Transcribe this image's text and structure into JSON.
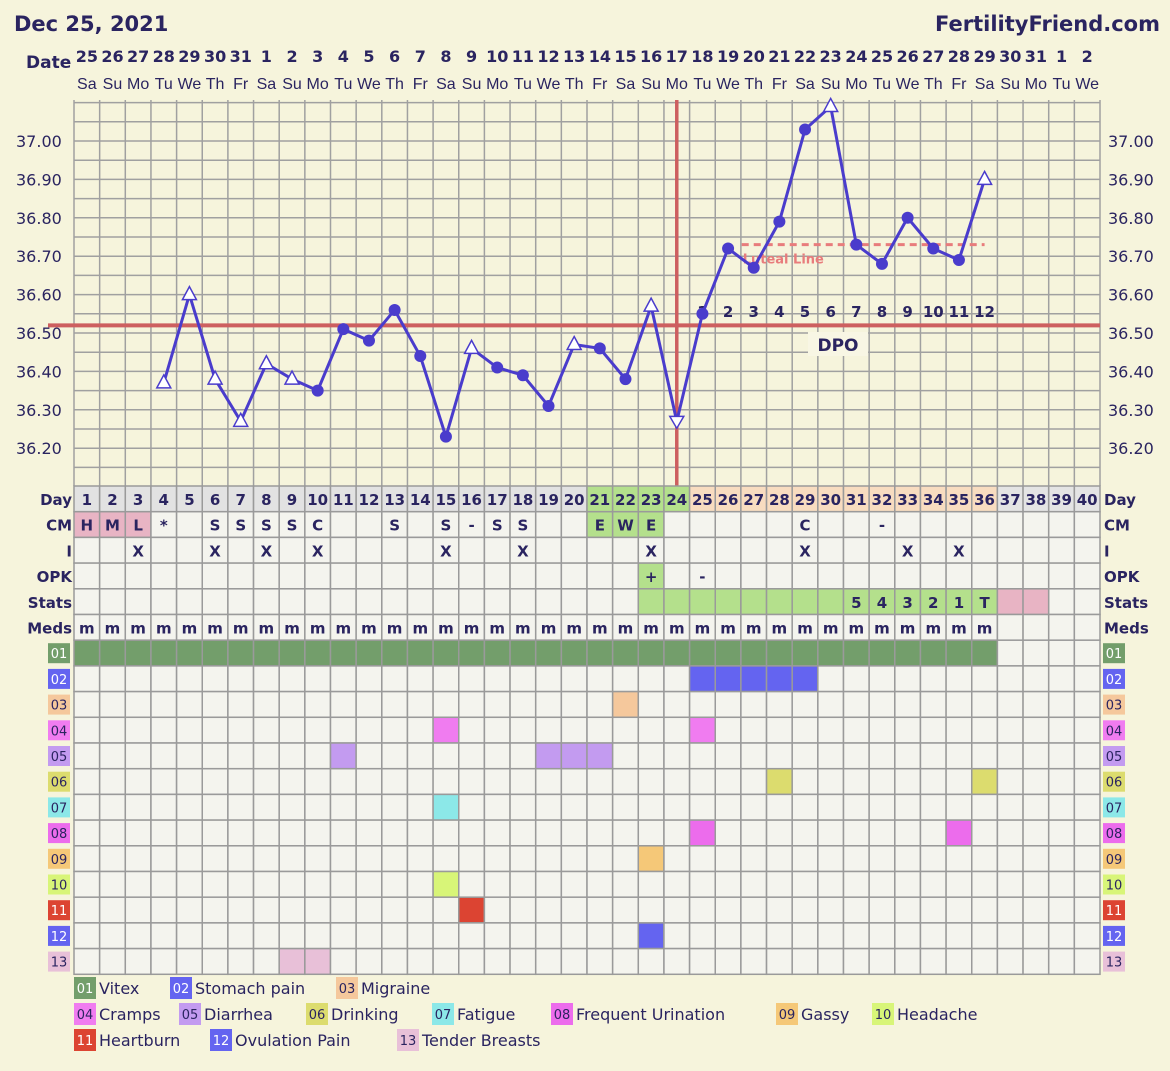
{
  "header": {
    "date": "Dec 25, 2021",
    "site": "FertilityFriend.com",
    "date_label": "Date"
  },
  "dates": [
    {
      "d": "25",
      "w": "Sa"
    },
    {
      "d": "26",
      "w": "Su"
    },
    {
      "d": "27",
      "w": "Mo"
    },
    {
      "d": "28",
      "w": "Tu"
    },
    {
      "d": "29",
      "w": "We"
    },
    {
      "d": "30",
      "w": "Th"
    },
    {
      "d": "31",
      "w": "Fr"
    },
    {
      "d": "1",
      "w": "Sa"
    },
    {
      "d": "2",
      "w": "Su"
    },
    {
      "d": "3",
      "w": "Mo"
    },
    {
      "d": "4",
      "w": "Tu"
    },
    {
      "d": "5",
      "w": "We"
    },
    {
      "d": "6",
      "w": "Th"
    },
    {
      "d": "7",
      "w": "Fr"
    },
    {
      "d": "8",
      "w": "Sa"
    },
    {
      "d": "9",
      "w": "Su"
    },
    {
      "d": "10",
      "w": "Mo"
    },
    {
      "d": "11",
      "w": "Tu"
    },
    {
      "d": "12",
      "w": "We"
    },
    {
      "d": "13",
      "w": "Th"
    },
    {
      "d": "14",
      "w": "Fr"
    },
    {
      "d": "15",
      "w": "Sa"
    },
    {
      "d": "16",
      "w": "Su"
    },
    {
      "d": "17",
      "w": "Mo"
    },
    {
      "d": "18",
      "w": "Tu"
    },
    {
      "d": "19",
      "w": "We"
    },
    {
      "d": "20",
      "w": "Th"
    },
    {
      "d": "21",
      "w": "Fr"
    },
    {
      "d": "22",
      "w": "Sa"
    },
    {
      "d": "23",
      "w": "Su"
    },
    {
      "d": "24",
      "w": "Mo"
    },
    {
      "d": "25",
      "w": "Tu"
    },
    {
      "d": "26",
      "w": "We"
    },
    {
      "d": "27",
      "w": "Th"
    },
    {
      "d": "28",
      "w": "Fr"
    },
    {
      "d": "29",
      "w": "Sa"
    },
    {
      "d": "30",
      "w": "Su"
    },
    {
      "d": "31",
      "w": "Mo"
    },
    {
      "d": "1",
      "w": "Tu"
    },
    {
      "d": "2",
      "w": "We"
    }
  ],
  "chart_data": {
    "type": "line",
    "ylim": [
      36.1,
      37.1
    ],
    "y_ticks": [
      "37.00",
      "36.90",
      "36.80",
      "36.70",
      "36.60",
      "36.50",
      "36.40",
      "36.30",
      "36.20"
    ],
    "x": [
      1,
      2,
      3,
      4,
      5,
      6,
      7,
      8,
      9,
      10,
      11,
      12,
      13,
      14,
      15,
      16,
      17,
      18,
      19,
      20,
      21,
      22,
      23,
      24,
      25,
      26,
      27,
      28,
      29,
      30,
      31,
      32,
      33,
      34,
      35,
      36,
      37,
      38,
      39,
      40
    ],
    "temps": [
      null,
      null,
      null,
      36.37,
      36.6,
      36.38,
      36.27,
      36.42,
      36.38,
      36.35,
      36.51,
      36.48,
      36.56,
      36.44,
      36.23,
      36.46,
      36.41,
      36.39,
      36.31,
      36.47,
      36.46,
      36.38,
      36.57,
      36.27,
      36.55,
      36.72,
      36.67,
      36.79,
      37.03,
      37.09,
      36.73,
      36.68,
      36.8,
      36.72,
      36.69,
      36.9,
      null,
      null,
      null,
      null
    ],
    "markers": [
      null,
      null,
      null,
      "open",
      "open",
      "open",
      "open",
      "open",
      "open",
      "filled",
      "filled",
      "filled",
      "filled",
      "filled",
      "filled",
      "open",
      "filled",
      "filled",
      "filled",
      "open",
      "filled",
      "filled",
      "open",
      "open-down",
      "filled",
      "filled",
      "filled",
      "filled",
      "filled",
      "open",
      "filled",
      "filled",
      "filled",
      "filled",
      "filled",
      "open",
      null,
      null,
      null,
      null
    ],
    "coverline": 36.52,
    "ovulation_day": 24,
    "luteal_line": {
      "value": 36.73,
      "from_day": 27,
      "to_day": 36,
      "label": "Luteal Line"
    },
    "dpo_days": [
      25,
      26,
      27,
      28,
      29,
      30,
      31,
      32,
      33,
      34,
      35,
      36
    ],
    "dpo_labels": [
      "1",
      "2",
      "3",
      "4",
      "5",
      "6",
      "7",
      "8",
      "9",
      "10",
      "11",
      "12"
    ],
    "dpo_label": "DPO",
    "grid": true
  },
  "rows": {
    "labels": {
      "day": "Day",
      "cm": "CM",
      "i": "I",
      "opk": "OPK",
      "stats": "Stats",
      "meds": "Meds"
    },
    "day_numbers": [
      "1",
      "2",
      "3",
      "4",
      "5",
      "6",
      "7",
      "8",
      "9",
      "10",
      "11",
      "12",
      "13",
      "14",
      "15",
      "16",
      "17",
      "18",
      "19",
      "20",
      "21",
      "22",
      "23",
      "24",
      "25",
      "26",
      "27",
      "28",
      "29",
      "30",
      "31",
      "32",
      "33",
      "34",
      "35",
      "36",
      "37",
      "38",
      "39",
      "40"
    ],
    "cm": [
      "H",
      "M",
      "L",
      "*",
      "",
      "S",
      "S",
      "S",
      "S",
      "C",
      "",
      "",
      "S",
      "",
      "S",
      "-",
      "S",
      "S",
      "",
      "",
      "E",
      "W",
      "E",
      "",
      "",
      "",
      "",
      "",
      "C",
      "",
      "",
      "-",
      "",
      "",
      "",
      "",
      "",
      "",
      "",
      ""
    ],
    "i": [
      "",
      "",
      "X",
      "",
      "",
      "X",
      "",
      "X",
      "",
      "X",
      "",
      "",
      "",
      "",
      "X",
      "",
      "",
      "X",
      "",
      "",
      "",
      "",
      "X",
      "",
      "",
      "",
      "",
      "",
      "X",
      "",
      "",
      "",
      "X",
      "",
      "X",
      "",
      "",
      "",
      "",
      ""
    ],
    "opk": [
      "",
      "",
      "",
      "",
      "",
      "",
      "",
      "",
      "",
      "",
      "",
      "",
      "",
      "",
      "",
      "",
      "",
      "",
      "",
      "",
      "",
      "",
      "+",
      "",
      "-",
      "",
      "",
      "",
      "",
      "",
      "",
      "",
      "",
      "",
      "",
      "",
      "",
      "",
      "",
      ""
    ],
    "stats": [
      "",
      "",
      "",
      "",
      "",
      "",
      "",
      "",
      "",
      "",
      "",
      "",
      "",
      "",
      "",
      "",
      "",
      "",
      "",
      "",
      "",
      "",
      "",
      "",
      "",
      "",
      "",
      "",
      "",
      "",
      "5",
      "4",
      "3",
      "2",
      "1",
      "T",
      "",
      "",
      "",
      ""
    ],
    "meds": [
      "m",
      "m",
      "m",
      "m",
      "m",
      "m",
      "m",
      "m",
      "m",
      "m",
      "m",
      "m",
      "m",
      "m",
      "m",
      "m",
      "m",
      "m",
      "m",
      "m",
      "m",
      "m",
      "m",
      "m",
      "m",
      "m",
      "m",
      "m",
      "m",
      "m",
      "m",
      "m",
      "m",
      "m",
      "m",
      "m",
      "",
      "",
      "",
      ""
    ]
  },
  "symptoms": [
    {
      "code": "01",
      "name": "Vitex",
      "color": "#739e6b",
      "text": "#ffffff",
      "days": [
        1,
        2,
        3,
        4,
        5,
        6,
        7,
        8,
        9,
        10,
        11,
        12,
        13,
        14,
        15,
        16,
        17,
        18,
        19,
        20,
        21,
        22,
        23,
        24,
        25,
        26,
        27,
        28,
        29,
        30,
        31,
        32,
        33,
        34,
        35,
        36
      ]
    },
    {
      "code": "02",
      "name": "Stomach pain",
      "color": "#6464f0",
      "text": "#ffffff",
      "days": [
        25,
        26,
        27,
        28,
        29
      ]
    },
    {
      "code": "03",
      "name": "Migraine",
      "color": "#f5c89c",
      "text": "#2a2460",
      "days": [
        22
      ]
    },
    {
      "code": "04",
      "name": "Cramps",
      "color": "#f07cf0",
      "text": "#2a2460",
      "days": [
        15,
        25
      ]
    },
    {
      "code": "05",
      "name": "Diarrhea",
      "color": "#c39bf0",
      "text": "#2a2460",
      "days": [
        11,
        19,
        20,
        21
      ]
    },
    {
      "code": "06",
      "name": "Drinking",
      "color": "#dcdc6e",
      "text": "#2a2460",
      "days": [
        28,
        36
      ]
    },
    {
      "code": "07",
      "name": "Fatigue",
      "color": "#8ce8e8",
      "text": "#2a2460",
      "days": [
        15
      ]
    },
    {
      "code": "08",
      "name": "Frequent Urination",
      "color": "#ec6cec",
      "text": "#2a2460",
      "days": [
        25,
        35
      ]
    },
    {
      "code": "09",
      "name": "Gassy",
      "color": "#f5c878",
      "text": "#2a2460",
      "days": [
        23
      ]
    },
    {
      "code": "10",
      "name": "Headache",
      "color": "#d8f578",
      "text": "#2a2460",
      "days": [
        15
      ]
    },
    {
      "code": "11",
      "name": "Heartburn",
      "color": "#dc4432",
      "text": "#ffffff",
      "days": [
        16
      ]
    },
    {
      "code": "12",
      "name": "Ovulation Pain",
      "color": "#6464f0",
      "text": "#ffffff",
      "days": [
        23
      ]
    },
    {
      "code": "13",
      "name": "Tender Breasts",
      "color": "#e8c0d8",
      "text": "#2a2460",
      "days": [
        9,
        10
      ]
    }
  ],
  "colors": {
    "line": "#4a3ccc",
    "coverline": "#cd5f5f",
    "luteal": "#e87c7c",
    "day_follicular": "#e2e2e2",
    "day_fertile": "#b4e08c",
    "day_luteal": "#f8dcc0",
    "day_future": "#e4e4e4",
    "cm_menses": "#e8b4c4",
    "fertile_cell": "#b4e08c",
    "stats_pink": "#e8b4c4"
  }
}
